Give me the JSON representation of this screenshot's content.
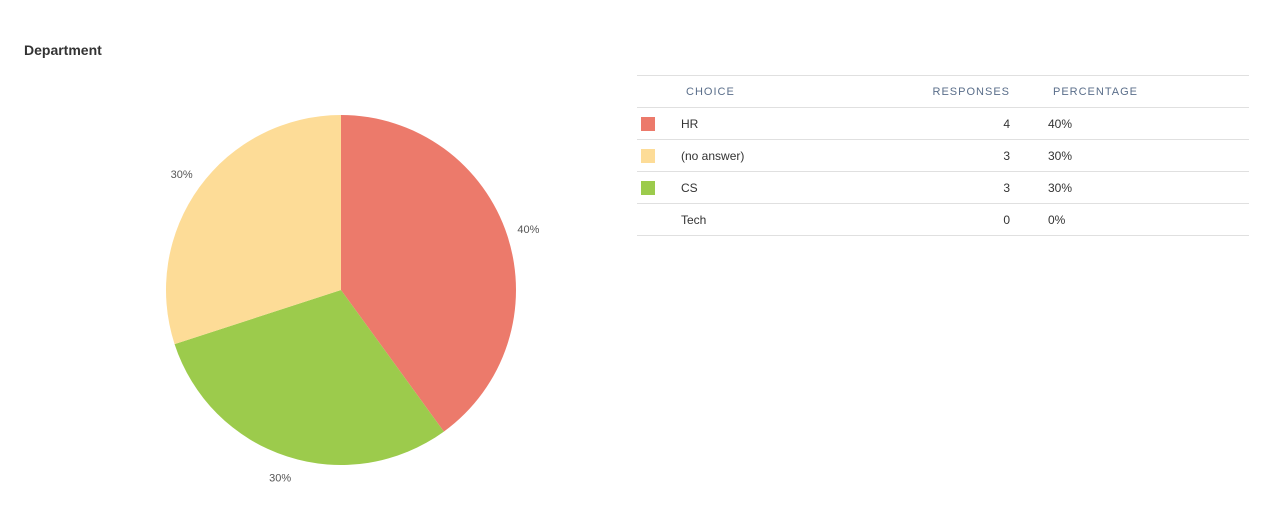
{
  "title": "Department",
  "chart_data": {
    "type": "pie",
    "title": "Department",
    "slices": [
      {
        "name": "HR",
        "value": 4,
        "percent_label": "40%",
        "color": "#ec7a6b"
      },
      {
        "name": "CS",
        "value": 3,
        "percent_label": "30%",
        "color": "#9ccb4c"
      },
      {
        "name": "(no answer)",
        "value": 3,
        "percent_label": "30%",
        "color": "#fddc97"
      }
    ]
  },
  "table": {
    "headers": {
      "choice": "CHOICE",
      "responses": "RESPONSES",
      "percentage": "PERCENTAGE"
    },
    "rows": [
      {
        "choice": "HR",
        "responses": "4",
        "percentage": "40%",
        "color": "#ec7a6b"
      },
      {
        "choice": "(no answer)",
        "responses": "3",
        "percentage": "30%",
        "color": "#fddc97"
      },
      {
        "choice": "CS",
        "responses": "3",
        "percentage": "30%",
        "color": "#9ccb4c"
      },
      {
        "choice": "Tech",
        "responses": "0",
        "percentage": "0%",
        "color": ""
      }
    ]
  }
}
